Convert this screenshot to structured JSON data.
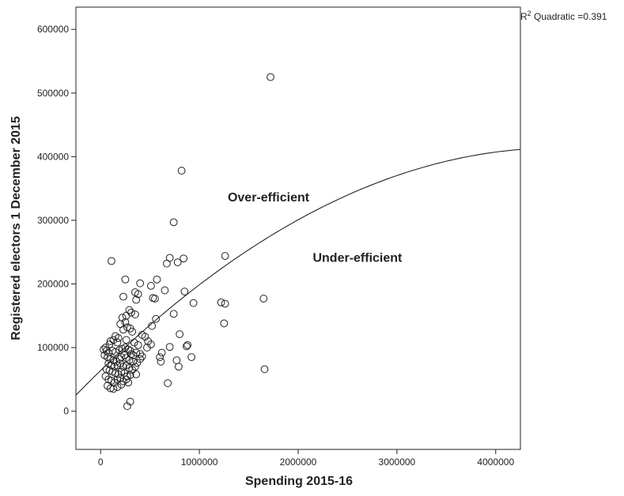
{
  "chart_data": {
    "type": "scatter",
    "title": "",
    "xlabel": "Spending 2015-16",
    "ylabel": "Registered electors 1 December 2015",
    "xlim": [
      -250000,
      4250000
    ],
    "ylim": [
      -60000,
      635000
    ],
    "xticks": [
      0,
      1000000,
      2000000,
      3000000,
      4000000
    ],
    "xtick_labels": [
      "0",
      "1000000",
      "2000000",
      "3000000",
      "4000000"
    ],
    "yticks": [
      0,
      100000,
      200000,
      300000,
      400000,
      500000,
      600000
    ],
    "ytick_labels": [
      "0",
      "100000",
      "200000",
      "300000",
      "400000",
      "500000",
      "600000"
    ],
    "grid": false,
    "fit": {
      "type": "quadratic",
      "label_prefix": "R",
      "label_sup": "2",
      "label_text": " Quadratic =0.391",
      "a": 64000,
      "b": 0.151,
      "c": -1.63e-08
    },
    "annotations": [
      {
        "text": "Over-efficient",
        "x": 1700000,
        "y": 330000
      },
      {
        "text": "Under-efficient",
        "x": 2600000,
        "y": 235000
      }
    ],
    "points": [
      [
        1720000,
        525000
      ],
      [
        820000,
        378000
      ],
      [
        740000,
        297000
      ],
      [
        1260000,
        244000
      ],
      [
        700000,
        241000
      ],
      [
        840000,
        240000
      ],
      [
        670000,
        232000
      ],
      [
        780000,
        234000
      ],
      [
        110000,
        236000
      ],
      [
        250000,
        207000
      ],
      [
        400000,
        201000
      ],
      [
        570000,
        207000
      ],
      [
        510000,
        197000
      ],
      [
        350000,
        187000
      ],
      [
        380000,
        184000
      ],
      [
        650000,
        190000
      ],
      [
        850000,
        188000
      ],
      [
        230000,
        180000
      ],
      [
        360000,
        175000
      ],
      [
        530000,
        178000
      ],
      [
        550000,
        177000
      ],
      [
        940000,
        170000
      ],
      [
        1220000,
        171000
      ],
      [
        1260000,
        169000
      ],
      [
        1650000,
        177000
      ],
      [
        290000,
        159000
      ],
      [
        310000,
        155000
      ],
      [
        260000,
        150000
      ],
      [
        350000,
        152000
      ],
      [
        220000,
        147000
      ],
      [
        740000,
        153000
      ],
      [
        560000,
        145000
      ],
      [
        250000,
        140000
      ],
      [
        200000,
        137000
      ],
      [
        270000,
        132000
      ],
      [
        300000,
        130000
      ],
      [
        320000,
        125000
      ],
      [
        230000,
        128000
      ],
      [
        450000,
        117000
      ],
      [
        520000,
        134000
      ],
      [
        420000,
        120000
      ],
      [
        480000,
        110000
      ],
      [
        510000,
        105000
      ],
      [
        800000,
        121000
      ],
      [
        1250000,
        138000
      ],
      [
        150000,
        118000
      ],
      [
        180000,
        115000
      ],
      [
        130000,
        112000
      ],
      [
        100000,
        110000
      ],
      [
        90000,
        105000
      ],
      [
        170000,
        108000
      ],
      [
        260000,
        112000
      ],
      [
        340000,
        108000
      ],
      [
        380000,
        104000
      ],
      [
        470000,
        100000
      ],
      [
        700000,
        101000
      ],
      [
        870000,
        102000
      ],
      [
        880000,
        104000
      ],
      [
        50000,
        100000
      ],
      [
        30000,
        97000
      ],
      [
        60000,
        95000
      ],
      [
        80000,
        92000
      ],
      [
        120000,
        95000
      ],
      [
        150000,
        93000
      ],
      [
        190000,
        96000
      ],
      [
        220000,
        98000
      ],
      [
        250000,
        100000
      ],
      [
        280000,
        97000
      ],
      [
        300000,
        95000
      ],
      [
        310000,
        90000
      ],
      [
        330000,
        88000
      ],
      [
        360000,
        92000
      ],
      [
        400000,
        90000
      ],
      [
        420000,
        86000
      ],
      [
        620000,
        92000
      ],
      [
        600000,
        85000
      ],
      [
        920000,
        85000
      ],
      [
        40000,
        88000
      ],
      [
        70000,
        85000
      ],
      [
        100000,
        82000
      ],
      [
        130000,
        80000
      ],
      [
        160000,
        78000
      ],
      [
        190000,
        82000
      ],
      [
        210000,
        85000
      ],
      [
        240000,
        88000
      ],
      [
        260000,
        84000
      ],
      [
        290000,
        80000
      ],
      [
        330000,
        78000
      ],
      [
        370000,
        76000
      ],
      [
        400000,
        82000
      ],
      [
        610000,
        78000
      ],
      [
        770000,
        80000
      ],
      [
        80000,
        75000
      ],
      [
        110000,
        72000
      ],
      [
        140000,
        70000
      ],
      [
        170000,
        72000
      ],
      [
        200000,
        75000
      ],
      [
        230000,
        70000
      ],
      [
        260000,
        72000
      ],
      [
        290000,
        68000
      ],
      [
        320000,
        65000
      ],
      [
        350000,
        70000
      ],
      [
        790000,
        70000
      ],
      [
        60000,
        66000
      ],
      [
        90000,
        64000
      ],
      [
        120000,
        62000
      ],
      [
        150000,
        60000
      ],
      [
        180000,
        58000
      ],
      [
        210000,
        62000
      ],
      [
        240000,
        60000
      ],
      [
        270000,
        55000
      ],
      [
        300000,
        57000
      ],
      [
        360000,
        58000
      ],
      [
        1660000,
        66000
      ],
      [
        50000,
        55000
      ],
      [
        80000,
        50000
      ],
      [
        110000,
        48000
      ],
      [
        140000,
        45000
      ],
      [
        170000,
        50000
      ],
      [
        200000,
        52000
      ],
      [
        230000,
        47000
      ],
      [
        260000,
        50000
      ],
      [
        280000,
        45000
      ],
      [
        680000,
        44000
      ],
      [
        70000,
        40000
      ],
      [
        100000,
        36000
      ],
      [
        130000,
        35000
      ],
      [
        170000,
        38000
      ],
      [
        210000,
        42000
      ],
      [
        300000,
        15000
      ],
      [
        270000,
        8000
      ]
    ]
  }
}
